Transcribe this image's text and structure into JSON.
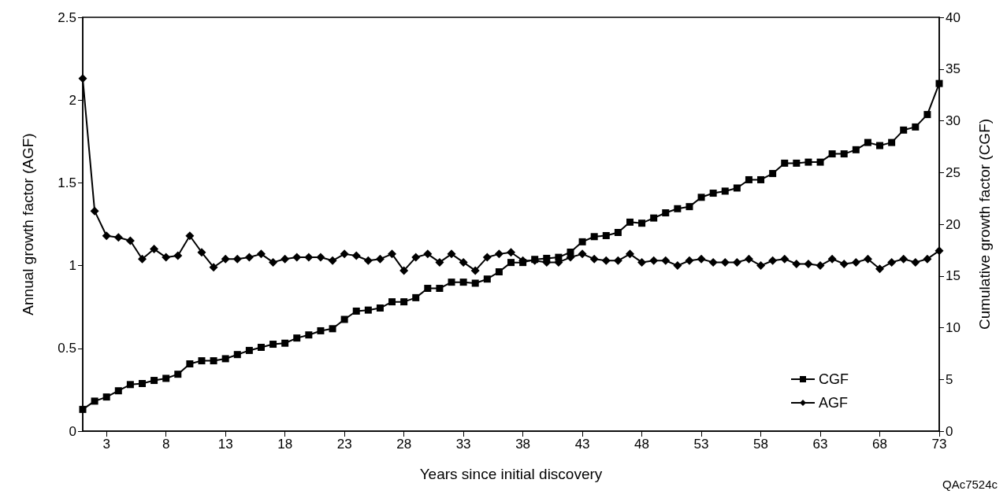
{
  "chart_data": {
    "type": "line",
    "xlabel": "Years since initial discovery",
    "ylabel": "Annual growth factor (AGF)",
    "y2label": "Cumulative growth factor (CGF)",
    "x": [
      1,
      2,
      3,
      4,
      5,
      6,
      7,
      8,
      9,
      10,
      11,
      12,
      13,
      14,
      15,
      16,
      17,
      18,
      19,
      20,
      21,
      22,
      23,
      24,
      25,
      26,
      27,
      28,
      29,
      30,
      31,
      32,
      33,
      34,
      35,
      36,
      37,
      38,
      39,
      40,
      41,
      42,
      43,
      44,
      45,
      46,
      47,
      48,
      49,
      50,
      51,
      52,
      53,
      54,
      55,
      56,
      57,
      58,
      59,
      60,
      61,
      62,
      63,
      64,
      65,
      66,
      67,
      68,
      69,
      70,
      71,
      72,
      73
    ],
    "series": [
      {
        "name": "CGF",
        "color": "#000000",
        "axis": "y2",
        "marker": "square",
        "values": [
          2.1,
          2.9,
          3.3,
          3.9,
          4.5,
          4.6,
          4.9,
          5.1,
          5.5,
          6.5,
          6.8,
          6.8,
          7.0,
          7.4,
          7.8,
          8.1,
          8.4,
          8.5,
          9.0,
          9.3,
          9.7,
          9.9,
          10.8,
          11.6,
          11.7,
          11.9,
          12.5,
          12.5,
          12.9,
          13.8,
          13.8,
          14.4,
          14.4,
          14.3,
          14.7,
          15.4,
          16.3,
          16.3,
          16.6,
          16.7,
          16.8,
          17.3,
          18.3,
          18.8,
          18.9,
          19.2,
          20.2,
          20.1,
          20.6,
          21.1,
          21.5,
          21.7,
          22.6,
          23.0,
          23.2,
          23.5,
          24.3,
          24.3,
          24.9,
          25.9,
          25.9,
          26.0,
          26.0,
          26.8,
          26.8,
          27.2,
          27.9,
          27.6,
          27.9,
          29.1,
          29.4,
          30.6,
          33.6
        ]
      },
      {
        "name": "AGF",
        "color": "#000000",
        "marker": "diamond",
        "values": [
          2.13,
          1.33,
          1.18,
          1.17,
          1.15,
          1.04,
          1.1,
          1.05,
          1.06,
          1.18,
          1.08,
          0.99,
          1.04,
          1.04,
          1.05,
          1.07,
          1.02,
          1.04,
          1.05,
          1.05,
          1.05,
          1.03,
          1.07,
          1.06,
          1.03,
          1.04,
          1.07,
          0.97,
          1.05,
          1.07,
          1.02,
          1.07,
          1.02,
          0.97,
          1.05,
          1.07,
          1.08,
          1.03,
          1.03,
          1.02,
          1.02,
          1.05,
          1.07,
          1.04,
          1.03,
          1.03,
          1.07,
          1.02,
          1.03,
          1.03,
          1.0,
          1.03,
          1.04,
          1.02,
          1.02,
          1.02,
          1.04,
          1.0,
          1.03,
          1.04,
          1.01,
          1.01,
          1.0,
          1.04,
          1.01,
          1.02,
          1.04,
          0.98,
          1.02,
          1.04,
          1.02,
          1.04,
          1.09
        ]
      }
    ],
    "xlim": [
      1,
      73
    ],
    "xticks": [
      3,
      8,
      13,
      18,
      23,
      28,
      33,
      38,
      43,
      48,
      53,
      58,
      63,
      68,
      73
    ],
    "ylim": [
      0,
      2.5
    ],
    "yticks": [
      0,
      0.5,
      1,
      1.5,
      2,
      2.5
    ],
    "y2lim": [
      0,
      40
    ],
    "y2ticks": [
      0,
      5,
      10,
      15,
      20,
      25,
      30,
      35,
      40
    ],
    "legend": "bottom right",
    "grid": false,
    "line_style": "solid",
    "annotations": [
      "QAc7524c"
    ]
  }
}
